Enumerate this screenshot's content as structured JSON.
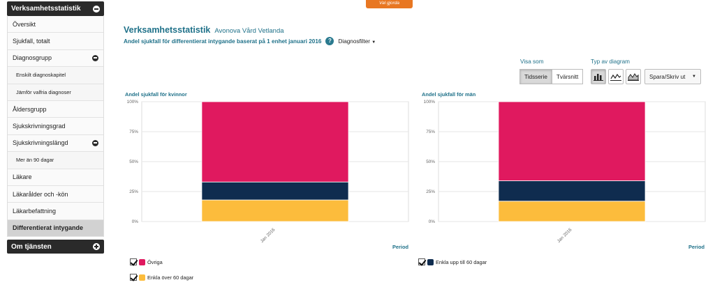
{
  "top_banner": {
    "label": "Val gjorda",
    "color": "#e87722"
  },
  "sidebar": {
    "header": "Verksamhetsstatistik",
    "items": [
      {
        "label": "Översikt",
        "level": 0
      },
      {
        "label": "Sjukfall, totalt",
        "level": 0
      },
      {
        "label": "Diagnosgrupp",
        "level": 0,
        "expanded": true
      },
      {
        "label": "Enskilt diagnoskapitel",
        "level": 1
      },
      {
        "label": "Jämför valfria diagnoser",
        "level": 1
      },
      {
        "label": "Åldersgrupp",
        "level": 0
      },
      {
        "label": "Sjukskrivningsgrad",
        "level": 0
      },
      {
        "label": "Sjukskrivningslängd",
        "level": 0,
        "expanded": true
      },
      {
        "label": "Mer än 90 dagar",
        "level": 1
      },
      {
        "label": "Läkare",
        "level": 0
      },
      {
        "label": "Läkarålder och -kön",
        "level": 0
      },
      {
        "label": "Läkarbefattning",
        "level": 0
      },
      {
        "label": "Differentierat intygande",
        "level": 0,
        "active": true
      }
    ],
    "footer": "Om tjänsten"
  },
  "header": {
    "title": "Verksamhetsstatistik",
    "unit": "Avonova Vård Vetlanda",
    "subtitle": "Andel sjukfall för differentierat intygande baserat på 1 enhet januari 2016",
    "help": "?",
    "diagnosis_filter": "Diagnosfilter"
  },
  "controls": {
    "view_as_label": "Visa som",
    "view_options": [
      "Tidsserie",
      "Tvärsnitt"
    ],
    "view_selected": "Tidsserie",
    "chart_type_label": "Typ av diagram",
    "chart_types": [
      "bar-chart-icon",
      "line-chart-icon",
      "area-chart-icon"
    ],
    "chart_type_selected": "bar-chart-icon",
    "save_label": "Spara/Skriv ut"
  },
  "colors": {
    "ovriga": "#e0195f",
    "enkla_upp_60": "#0f2c4f",
    "enkla_over_60": "#fcbc3c",
    "accent": "#1f7189"
  },
  "chart_data": [
    {
      "type": "bar",
      "stacked": true,
      "title": "Andel sjukfall för kvinnor",
      "xlabel": "Period",
      "categories": [
        "Jan 2016"
      ],
      "y_ticks": [
        "0%",
        "25%",
        "50%",
        "75%",
        "100%"
      ],
      "ylim": [
        0,
        100
      ],
      "series": [
        {
          "name": "Enkla över 60 dagar",
          "values": [
            18
          ],
          "color": "#fcbc3c"
        },
        {
          "name": "Enkla upp till 60 dagar",
          "values": [
            15
          ],
          "color": "#0f2c4f"
        },
        {
          "name": "Övriga",
          "values": [
            67
          ],
          "color": "#e0195f"
        }
      ]
    },
    {
      "type": "bar",
      "stacked": true,
      "title": "Andel sjukfall för män",
      "xlabel": "Period",
      "categories": [
        "Jan 2016"
      ],
      "y_ticks": [
        "0%",
        "25%",
        "50%",
        "75%",
        "100%"
      ],
      "ylim": [
        0,
        100
      ],
      "series": [
        {
          "name": "Enkla över 60 dagar",
          "values": [
            17
          ],
          "color": "#fcbc3c"
        },
        {
          "name": "Enkla upp till 60 dagar",
          "values": [
            17
          ],
          "color": "#0f2c4f"
        },
        {
          "name": "Övriga",
          "values": [
            66
          ],
          "color": "#e0195f"
        }
      ]
    }
  ],
  "legend": [
    {
      "name": "Övriga",
      "checked": true,
      "color": "#e0195f"
    },
    {
      "name": "Enkla upp till 60 dagar",
      "checked": true,
      "color": "#0f2c4f"
    },
    {
      "name": "Enkla över 60 dagar",
      "checked": true,
      "color": "#fcbc3c"
    }
  ]
}
